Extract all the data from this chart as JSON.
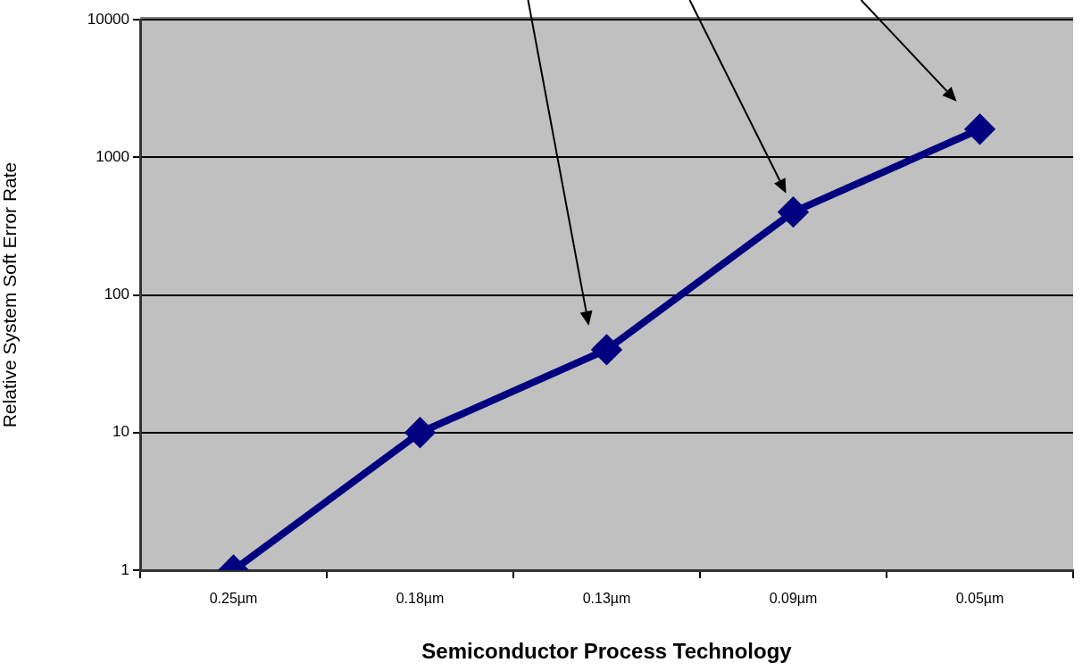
{
  "chart_data": {
    "type": "line",
    "xlabel": "Semiconductor Process Technology",
    "ylabel": "Relative System Soft Error Rate",
    "categories": [
      "0.25µm",
      "0.18µm",
      "0.13µm",
      "0.09µm",
      "0.05µm"
    ],
    "series": [
      {
        "color": "#000080",
        "values": [
          1,
          10,
          40,
          400,
          1600
        ]
      }
    ],
    "log": "y",
    "ylim": [
      1,
      10000
    ],
    "yticks": [
      1,
      10,
      100,
      1000,
      10000
    ],
    "grid": "y",
    "legend": false,
    "marker": "diamond",
    "line_style": "solid"
  }
}
